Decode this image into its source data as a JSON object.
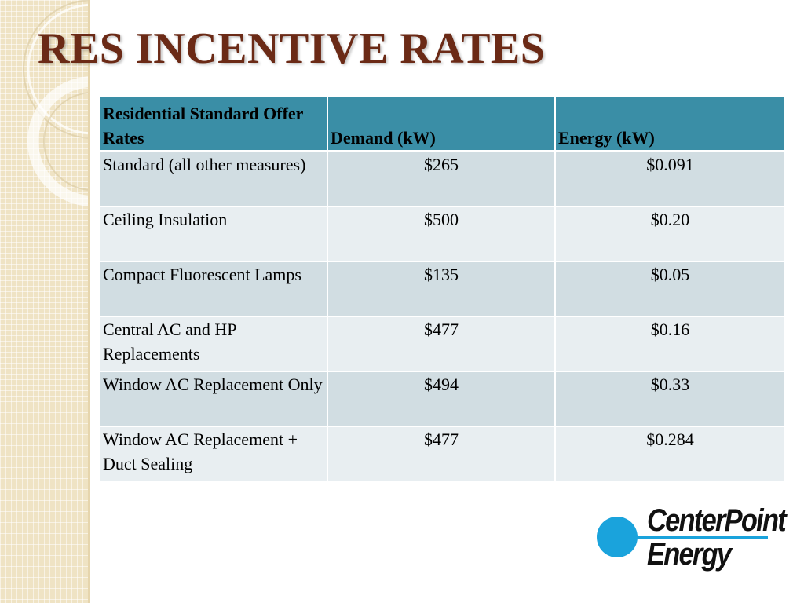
{
  "slide": {
    "title": "RES INCENTIVE RATES"
  },
  "table": {
    "headers": [
      "Residential Standard Offer Rates",
      "Demand (kW)",
      "Energy (kW)"
    ],
    "rows": [
      {
        "measure": "Standard (all other measures)",
        "demand": "$265",
        "energy": "$0.091"
      },
      {
        "measure": "Ceiling Insulation",
        "demand": "$500",
        "energy": "$0.20"
      },
      {
        "measure": "Compact Fluorescent Lamps",
        "demand": "$135",
        "energy": "$0.05"
      },
      {
        "measure": "Central AC and HP Replacements",
        "demand": "$477",
        "energy": "$0.16"
      },
      {
        "measure": "Window AC Replacement Only",
        "demand": "$494",
        "energy": "$0.33"
      },
      {
        "measure": "Window AC Replacement + Duct Sealing",
        "demand": "$477",
        "energy": "$0.284"
      }
    ]
  },
  "logo": {
    "line1": "CenterPoint",
    "line2": "Energy",
    "color": "#1aa3dc"
  },
  "colors": {
    "title": "#6b2a16",
    "header_bg": "#3a8ea6",
    "row_dark": "#d1dde2",
    "row_light": "#e8eef1",
    "band": "#efe3c4"
  }
}
